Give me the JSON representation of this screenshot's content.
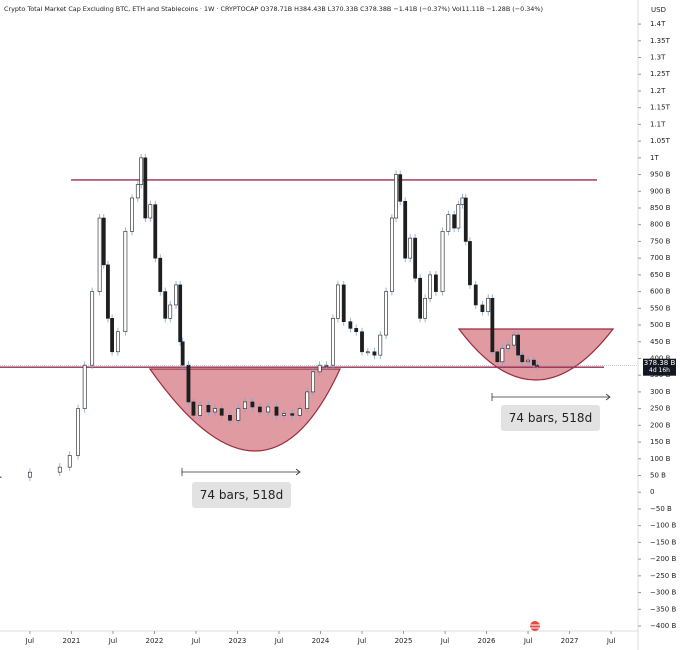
{
  "chart_data": {
    "type": "candlestick",
    "title": "Crypto Total Market Cap Excluding BTC, ETH and Stablecoins · 1W · CRYPTOCAP  O378.71B H384.43B L370.33B C378.38B −1.41B (−0.37%)  Vol11.11B −1.28B (−0.34%)",
    "axis_unit": "USD",
    "last_price_label": "378.38 B",
    "countdown": "4d 16h",
    "annotations": [
      "74 bars, 518d",
      "74 bars, 518d"
    ],
    "levels": [
      934,
      374
    ],
    "level_color": "#9c2b55",
    "up_color": "#ffffff",
    "down_color": "#1e1e1e",
    "x": [
      2020.14,
      2020.5,
      2020.86,
      2020.98,
      2021.08,
      2021.16,
      2021.25,
      2021.34,
      2021.39,
      2021.44,
      2021.49,
      2021.56,
      2021.65,
      2021.73,
      2021.8,
      2021.84,
      2021.89,
      2021.95,
      2022.01,
      2022.07,
      2022.13,
      2022.19,
      2022.26,
      2022.31,
      2022.34,
      2022.41,
      2022.47,
      2022.55,
      2022.65,
      2022.73,
      2022.81,
      2022.91,
      2023.01,
      2023.09,
      2023.18,
      2023.27,
      2023.37,
      2023.47,
      2023.56,
      2023.66,
      2023.75,
      2023.84,
      2023.91,
      2023.99,
      2024.07,
      2024.15,
      2024.21,
      2024.28,
      2024.36,
      2024.43,
      2024.5,
      2024.57,
      2024.65,
      2024.72,
      2024.79,
      2024.86,
      2024.91,
      2024.96,
      2025.02,
      2025.08,
      2025.14,
      2025.2,
      2025.26,
      2025.32,
      2025.39,
      2025.47,
      2025.54,
      2025.61,
      2025.66,
      2025.71,
      2025.75,
      2025.8,
      2025.87,
      2025.95,
      2026.02,
      2026.07,
      2026.13,
      2026.19,
      2026.26,
      2026.33,
      2026.38,
      2026.43,
      2026.5,
      2026.57,
      2026.61
    ],
    "values": [
      45,
      60,
      75,
      110,
      250,
      380,
      600,
      820,
      680,
      520,
      420,
      480,
      780,
      880,
      920,
      1000,
      820,
      860,
      700,
      600,
      520,
      560,
      620,
      450,
      380,
      270,
      230,
      260,
      240,
      250,
      230,
      215,
      250,
      270,
      255,
      240,
      255,
      230,
      235,
      230,
      250,
      300,
      360,
      380,
      380,
      520,
      620,
      510,
      490,
      480,
      420,
      420,
      410,
      470,
      600,
      820,
      950,
      870,
      700,
      760,
      640,
      520,
      580,
      650,
      600,
      780,
      830,
      790,
      860,
      880,
      750,
      620,
      560,
      540,
      580,
      420,
      390,
      430,
      440,
      470,
      410,
      390,
      395,
      380,
      378.38
    ],
    "xlim": [
      2020.14,
      2027.8
    ],
    "xticks": [
      {
        "value": 2020.5,
        "label": "Jul"
      },
      2021,
      {
        "value": 2021.5,
        "label": "Jul"
      },
      2022,
      {
        "value": 2022.5,
        "label": "Jul"
      },
      2023,
      {
        "value": 2023.5,
        "label": "Jul"
      },
      2024,
      {
        "value": 2024.5,
        "label": "Jul"
      },
      2025,
      {
        "value": 2025.5,
        "label": "Jul"
      },
      2026,
      {
        "value": 2026.5,
        "label": "Jul"
      },
      2027,
      {
        "value": 2027.5,
        "label": "Jul"
      }
    ],
    "ylim": [
      -412,
      1472
    ],
    "yticks": [
      {
        "value": 1400,
        "label": "1.4T"
      },
      {
        "value": 1350,
        "label": "1.35T"
      },
      {
        "value": 1300,
        "label": "1.3T"
      },
      {
        "value": 1250,
        "label": "1.25T"
      },
      {
        "value": 1200,
        "label": "1.2T"
      },
      {
        "value": 1150,
        "label": "1.15T"
      },
      {
        "value": 1100,
        "label": "1.1T"
      },
      {
        "value": 1050,
        "label": "1.05T"
      },
      {
        "value": 1000,
        "label": "1T"
      },
      {
        "value": 950,
        "label": "950 B"
      },
      {
        "value": 900,
        "label": "900 B"
      },
      {
        "value": 850,
        "label": "850 B"
      },
      {
        "value": 800,
        "label": "800 B"
      },
      {
        "value": 750,
        "label": "750 B"
      },
      {
        "value": 700,
        "label": "700 B"
      },
      {
        "value": 650,
        "label": "650 B"
      },
      {
        "value": 600,
        "label": "600 B"
      },
      {
        "value": 550,
        "label": "550 B"
      },
      {
        "value": 500,
        "label": "500 B"
      },
      {
        "value": 450,
        "label": "450 B"
      },
      {
        "value": 400,
        "label": "400 B"
      },
      {
        "value": 350,
        "label": "350 B"
      },
      {
        "value": 300,
        "label": "300 B"
      },
      {
        "value": 250,
        "label": "250 B"
      },
      {
        "value": 200,
        "label": "200 B"
      },
      {
        "value": 150,
        "label": "150 B"
      },
      {
        "value": 100,
        "label": "100 B"
      },
      {
        "value": 50,
        "label": "50 B"
      },
      0,
      {
        "value": -50,
        "label": "−50 B"
      },
      {
        "value": -100,
        "label": "−100 B"
      },
      {
        "value": -150,
        "label": "−150 B"
      },
      {
        "value": -200,
        "label": "−200 B"
      },
      {
        "value": -250,
        "label": "−250 B"
      },
      {
        "value": -300,
        "label": "−300 B"
      },
      {
        "value": -350,
        "label": "−350 B"
      },
      {
        "value": -400,
        "label": "−400 B"
      }
    ]
  }
}
